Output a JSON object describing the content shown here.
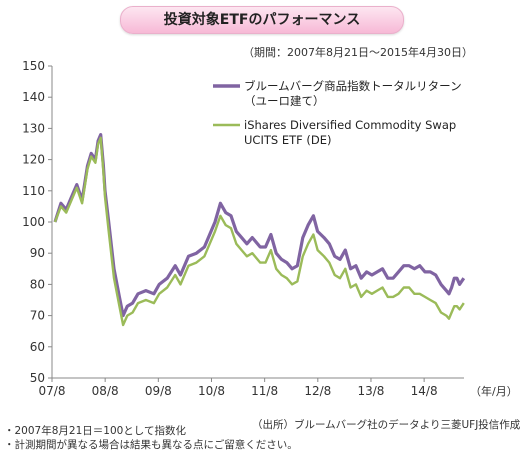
{
  "header": {
    "title": "投資対象ETFのパフォーマンス",
    "period": "（期間：2007年8月21日～2015年4月30日）"
  },
  "colors": {
    "series_index": "#8064a2",
    "series_etf": "#9bbb59",
    "axis": "#888888",
    "title_bg": "#f7b9d6"
  },
  "chart_data": {
    "type": "line",
    "title": "投資対象ETFのパフォーマンス",
    "xlabel": "（年/月）",
    "ylabel": "",
    "ylim": [
      50,
      150
    ],
    "yticks": [
      50,
      60,
      70,
      80,
      90,
      100,
      110,
      120,
      130,
      140,
      150
    ],
    "xlim": [
      2007.583,
      2015.333
    ],
    "xticks": [
      {
        "label": "07/8",
        "x": 2007.583
      },
      {
        "label": "08/8",
        "x": 2008.583
      },
      {
        "label": "09/8",
        "x": 2009.583
      },
      {
        "label": "10/8",
        "x": 2010.583
      },
      {
        "label": "11/8",
        "x": 2011.583
      },
      {
        "label": "12/8",
        "x": 2012.583
      },
      {
        "label": "13/8",
        "x": 2013.583
      },
      {
        "label": "14/8",
        "x": 2014.583
      }
    ],
    "grid": false,
    "legend": "top-right",
    "series": [
      {
        "name_line1": "ブルームバーグ商品指数トータルリターン",
        "name_line2": "（ユーロ建て）",
        "x": [
          2007.64,
          2007.75,
          2007.85,
          2007.95,
          2008.05,
          2008.15,
          2008.25,
          2008.32,
          2008.4,
          2008.45,
          2008.5,
          2008.55,
          2008.58,
          2008.65,
          2008.75,
          2008.85,
          2008.92,
          2009.0,
          2009.1,
          2009.2,
          2009.35,
          2009.5,
          2009.6,
          2009.75,
          2009.9,
          2010.0,
          2010.15,
          2010.3,
          2010.45,
          2010.55,
          2010.65,
          2010.75,
          2010.85,
          2010.95,
          2011.05,
          2011.15,
          2011.25,
          2011.35,
          2011.5,
          2011.6,
          2011.7,
          2011.8,
          2011.9,
          2012.0,
          2012.1,
          2012.2,
          2012.3,
          2012.4,
          2012.5,
          2012.58,
          2012.7,
          2012.8,
          2012.9,
          2013.0,
          2013.1,
          2013.2,
          2013.3,
          2013.4,
          2013.5,
          2013.6,
          2013.7,
          2013.8,
          2013.9,
          2014.0,
          2014.1,
          2014.2,
          2014.3,
          2014.4,
          2014.5,
          2014.6,
          2014.7,
          2014.8,
          2014.9,
          2015.0,
          2015.05,
          2015.1,
          2015.15,
          2015.2,
          2015.25,
          2015.33
        ],
        "values": [
          100,
          106,
          104,
          108,
          112,
          107,
          118,
          122,
          120,
          126,
          128,
          118,
          110,
          100,
          85,
          76,
          70,
          73,
          74,
          77,
          78,
          77,
          80,
          82,
          86,
          83,
          89,
          90,
          92,
          96,
          100,
          106,
          103,
          102,
          97,
          95,
          93,
          95,
          92,
          92,
          96,
          90,
          88,
          87,
          85,
          86,
          95,
          99,
          102,
          97,
          95,
          93,
          89,
          88,
          91,
          85,
          86,
          82,
          84,
          83,
          84,
          85,
          82,
          82,
          84,
          86,
          86,
          85,
          86,
          84,
          84,
          83,
          80,
          78,
          77,
          79,
          82,
          82,
          80,
          82
        ]
      },
      {
        "name_line1": "iShares Diversified Commodity Swap",
        "name_line2": "UCITS ETF (DE)",
        "x": [
          2007.64,
          2007.75,
          2007.85,
          2007.95,
          2008.05,
          2008.15,
          2008.25,
          2008.32,
          2008.4,
          2008.45,
          2008.5,
          2008.55,
          2008.58,
          2008.65,
          2008.75,
          2008.85,
          2008.92,
          2009.0,
          2009.1,
          2009.2,
          2009.35,
          2009.5,
          2009.6,
          2009.75,
          2009.9,
          2010.0,
          2010.15,
          2010.3,
          2010.45,
          2010.55,
          2010.65,
          2010.75,
          2010.85,
          2010.95,
          2011.05,
          2011.15,
          2011.25,
          2011.35,
          2011.5,
          2011.6,
          2011.7,
          2011.8,
          2011.9,
          2012.0,
          2012.1,
          2012.2,
          2012.3,
          2012.4,
          2012.5,
          2012.58,
          2012.7,
          2012.8,
          2012.9,
          2013.0,
          2013.1,
          2013.2,
          2013.3,
          2013.4,
          2013.5,
          2013.6,
          2013.7,
          2013.8,
          2013.9,
          2014.0,
          2014.1,
          2014.2,
          2014.3,
          2014.4,
          2014.5,
          2014.6,
          2014.7,
          2014.8,
          2014.9,
          2015.0,
          2015.05,
          2015.1,
          2015.15,
          2015.2,
          2015.25,
          2015.33
        ],
        "values": [
          100,
          105,
          103,
          107,
          111,
          106,
          117,
          121,
          119,
          125,
          127,
          116,
          108,
          97,
          82,
          73,
          67,
          70,
          71,
          74,
          75,
          74,
          77,
          79,
          83,
          80,
          86,
          87,
          89,
          93,
          97,
          102,
          99,
          98,
          93,
          91,
          89,
          90,
          87,
          87,
          91,
          85,
          83,
          82,
          80,
          81,
          89,
          93,
          96,
          91,
          89,
          87,
          83,
          82,
          85,
          79,
          80,
          76,
          78,
          77,
          78,
          79,
          76,
          76,
          77,
          79,
          79,
          77,
          77,
          76,
          75,
          74,
          71,
          70,
          69,
          71,
          73,
          73,
          72,
          74
        ]
      }
    ]
  },
  "notes": {
    "note1": "・2007年8月21日＝100として指数化",
    "note2": "・計測期間が異なる場合は結果も異なる点にご留意ください。",
    "source": "（出所）ブルームバーグ社のデータより三菱UFJ投信作成"
  }
}
